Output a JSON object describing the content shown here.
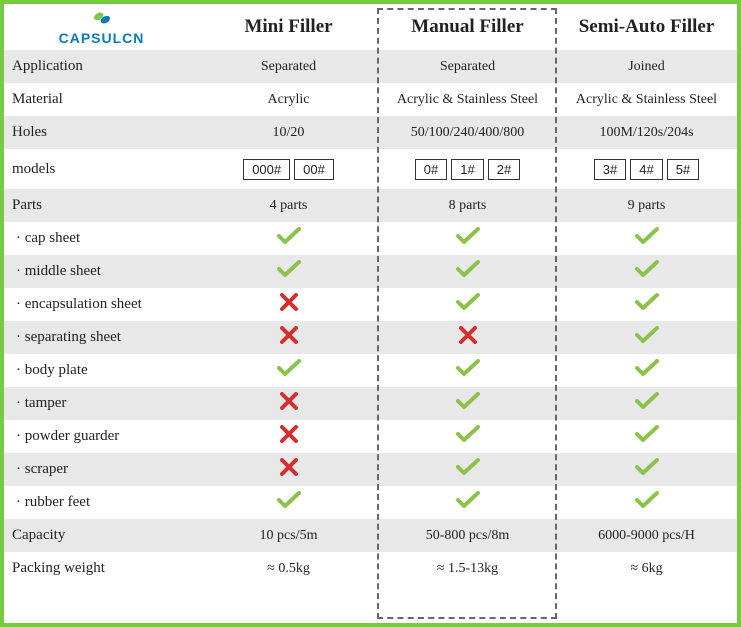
{
  "logo_text": "CAPSULCN",
  "columns": [
    "Mini Filler",
    "Manual Filler",
    "Semi-Auto Filler"
  ],
  "labels": {
    "application": "Application",
    "material": "Material",
    "holes": "Holes",
    "models": "models",
    "parts": "Parts",
    "capacity": "Capacity",
    "packing_weight": "Packing weight"
  },
  "application": [
    "Separated",
    "Separated",
    "Joined"
  ],
  "material": [
    "Acrylic",
    "Acrylic & Stainless Steel",
    "Acrylic & Stainless Steel"
  ],
  "holes": [
    "10/20",
    "50/100/240/400/800",
    "100M/120s/204s"
  ],
  "models": [
    [
      "000#",
      "00#"
    ],
    [
      "0#",
      "1#",
      "2#"
    ],
    [
      "3#",
      "4#",
      "5#"
    ]
  ],
  "parts_count": [
    "4 parts",
    "8 parts",
    "9 parts"
  ],
  "parts": [
    {
      "label": "· cap sheet",
      "vals": [
        "check",
        "check",
        "check"
      ]
    },
    {
      "label": "· middle sheet",
      "vals": [
        "check",
        "check",
        "check"
      ]
    },
    {
      "label": "· encapsulation sheet",
      "vals": [
        "cross",
        "check",
        "check"
      ]
    },
    {
      "label": "· separating sheet",
      "vals": [
        "cross",
        "cross",
        "check"
      ]
    },
    {
      "label": "· body plate",
      "vals": [
        "check",
        "check",
        "check"
      ]
    },
    {
      "label": "· tamper",
      "vals": [
        "cross",
        "check",
        "check"
      ]
    },
    {
      "label": "· powder guarder",
      "vals": [
        "cross",
        "check",
        "check"
      ]
    },
    {
      "label": "· scraper",
      "vals": [
        "cross",
        "check",
        "check"
      ]
    },
    {
      "label": "· rubber feet",
      "vals": [
        "check",
        "check",
        "check"
      ]
    }
  ],
  "capacity": [
    "10 pcs/5m",
    "50-800 pcs/8m",
    "6000-9000 pcs/H"
  ],
  "packing_weight": [
    "≈ 0.5kg",
    "≈ 1.5-13kg",
    "≈ 6kg"
  ],
  "colors": {
    "border": "#7ac943",
    "check": "#8bc34a",
    "cross": "#d32f2f",
    "stripe": "#e8e8e8",
    "text": "#222222",
    "logo": "#0a7bb5"
  }
}
